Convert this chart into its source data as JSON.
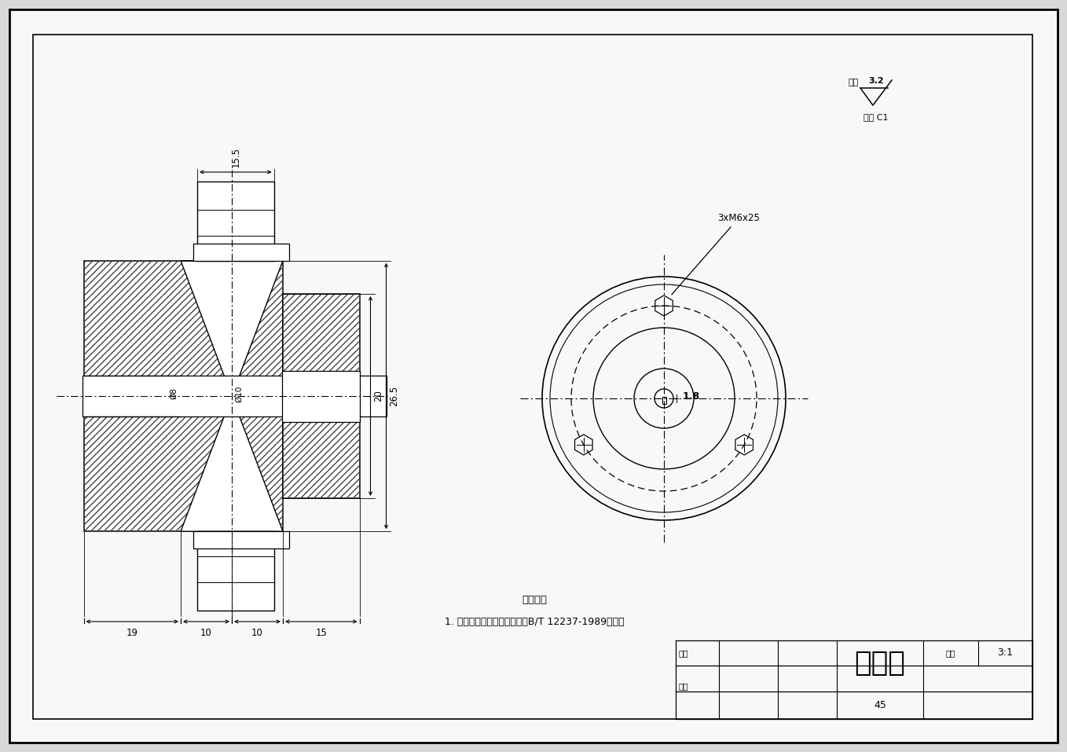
{
  "title": "联轴器",
  "scale": "3:1",
  "part_number": "45",
  "drawer_label": "制图",
  "checker_label": "审核",
  "scale_label": "比例",
  "surface_roughness": "3.2",
  "surface_label": "其余",
  "chamfer_label": "倒角 C1",
  "tech_title": "技术要求",
  "tech_note": "1. 制造与验收技术条件应符合B/T 12237-1989的规定",
  "bolt_label": "3xM6x25",
  "dim_18": "1.8",
  "bg_color": "#d8d8d8",
  "page_color": "#f5f5f5",
  "dim_19": "19",
  "dim_10a": "10",
  "dim_10b": "10",
  "dim_15": "15",
  "dim_155": "15.5",
  "dim_20": "20",
  "dim_265": "26.5",
  "dim_phi8": "Ø8",
  "dim_phi10": "Ø10"
}
